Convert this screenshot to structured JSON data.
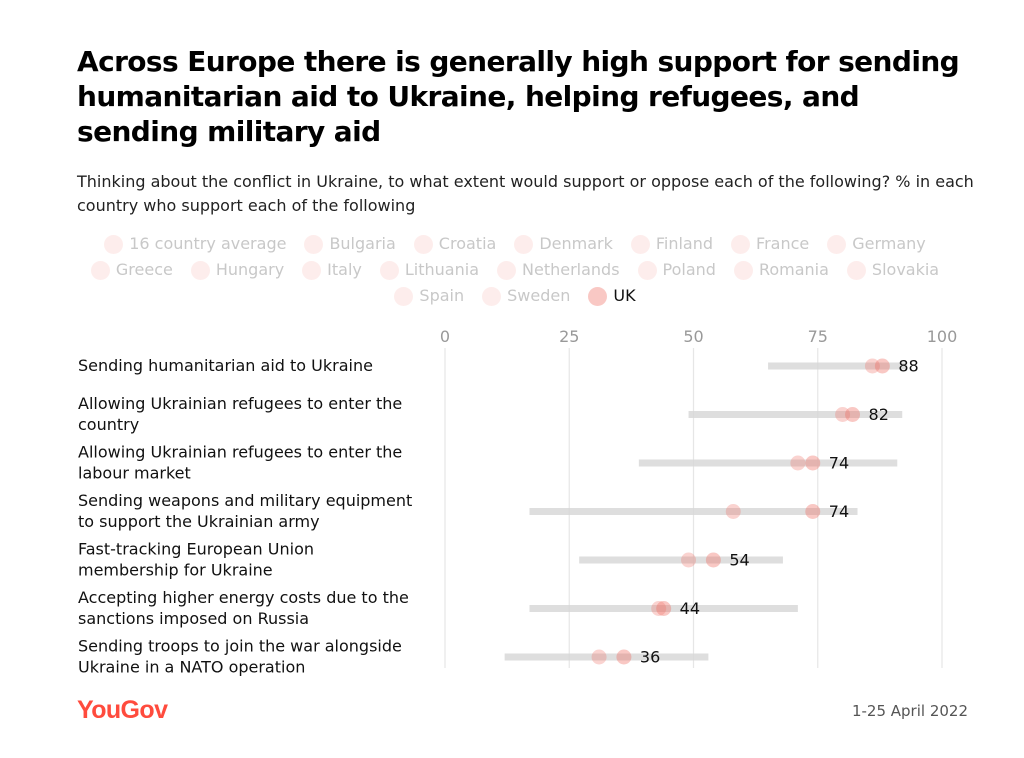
{
  "title": "Across Europe there is generally high support for sending humanitarian aid to Ukraine, helping refugees, and sending military aid",
  "subtitle": "Thinking about the conflict in Ukraine, to what extent would support or oppose each of the following? % in each country who support each of the following",
  "legend": [
    {
      "label": "16 country average",
      "active": false
    },
    {
      "label": "Bulgaria",
      "active": false
    },
    {
      "label": "Croatia",
      "active": false
    },
    {
      "label": "Denmark",
      "active": false
    },
    {
      "label": "Finland",
      "active": false
    },
    {
      "label": "France",
      "active": false
    },
    {
      "label": "Germany",
      "active": false
    },
    {
      "label": "Greece",
      "active": false
    },
    {
      "label": "Hungary",
      "active": false
    },
    {
      "label": "Italy",
      "active": false
    },
    {
      "label": "Lithuania",
      "active": false
    },
    {
      "label": "Netherlands",
      "active": false
    },
    {
      "label": "Poland",
      "active": false
    },
    {
      "label": "Romania",
      "active": false
    },
    {
      "label": "Slovakia",
      "active": false
    },
    {
      "label": "Spain",
      "active": false
    },
    {
      "label": "Sweden",
      "active": false
    },
    {
      "label": "UK",
      "active": true
    }
  ],
  "colors": {
    "dot": "#f06e64",
    "range": "#d9d9d9",
    "grid": "#e6e6e6",
    "brand": "#ff4b3d"
  },
  "chart_data": {
    "type": "scatter",
    "xlim": [
      0,
      100
    ],
    "xticks": [
      0,
      25,
      50,
      75,
      100
    ],
    "highlight_series": "UK",
    "rows": [
      {
        "label": [
          "Sending humanitarian aid to Ukraine"
        ],
        "uk": 88,
        "average": 86,
        "range": [
          65,
          93
        ]
      },
      {
        "label": [
          "Allowing Ukrainian refugees to enter the",
          "country"
        ],
        "uk": 82,
        "average": 80,
        "range": [
          49,
          92
        ]
      },
      {
        "label": [
          "Allowing Ukrainian refugees to enter the",
          "labour market"
        ],
        "uk": 74,
        "average": 71,
        "range": [
          39,
          91
        ]
      },
      {
        "label": [
          "Sending weapons and military equipment",
          "to support the Ukrainian army"
        ],
        "uk": 74,
        "average": 58,
        "range": [
          17,
          83
        ]
      },
      {
        "label": [
          "Fast-tracking European Union",
          "membership for Ukraine"
        ],
        "uk": 54,
        "average": 49,
        "range": [
          27,
          68
        ]
      },
      {
        "label": [
          "Accepting higher energy costs due to the",
          "sanctions imposed on Russia"
        ],
        "uk": 44,
        "average": 43,
        "range": [
          17,
          71
        ]
      },
      {
        "label": [
          "Sending troops to join the war alongside",
          "Ukraine in a NATO operation"
        ],
        "uk": 36,
        "average": 31,
        "range": [
          12,
          53
        ]
      }
    ]
  },
  "footer": {
    "brand": "YouGov",
    "date": "1-25 April 2022"
  }
}
